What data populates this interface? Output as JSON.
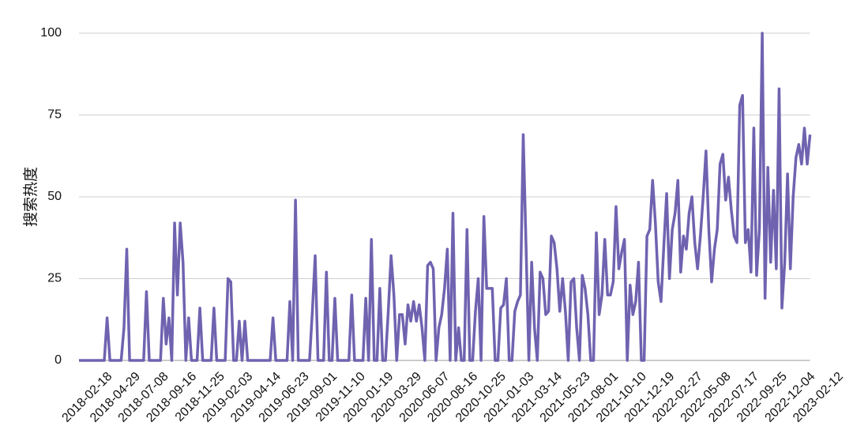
{
  "chart_data": {
    "type": "line",
    "y_label": "搜索热度",
    "categories": [
      null,
      null,
      null,
      null,
      null,
      null,
      null,
      null,
      null,
      null,
      "2018-02-18",
      null,
      null,
      null,
      null,
      null,
      null,
      null,
      null,
      null,
      "2018-04-29",
      null,
      null,
      null,
      null,
      null,
      null,
      null,
      null,
      null,
      "2018-07-08",
      null,
      null,
      null,
      null,
      null,
      null,
      null,
      null,
      null,
      "2018-09-16",
      null,
      null,
      null,
      null,
      null,
      null,
      null,
      null,
      null,
      "2018-11-25",
      null,
      null,
      null,
      null,
      null,
      null,
      null,
      null,
      null,
      "2019-02-03",
      null,
      null,
      null,
      null,
      null,
      null,
      null,
      null,
      null,
      "2019-04-14",
      null,
      null,
      null,
      null,
      null,
      null,
      null,
      null,
      null,
      "2019-06-23",
      null,
      null,
      null,
      null,
      null,
      null,
      null,
      null,
      null,
      "2019-09-01",
      null,
      null,
      null,
      null,
      null,
      null,
      null,
      null,
      null,
      "2019-11-10",
      null,
      null,
      null,
      null,
      null,
      null,
      null,
      null,
      null,
      "2020-01-19",
      null,
      null,
      null,
      null,
      null,
      null,
      null,
      null,
      null,
      "2020-03-29",
      null,
      null,
      null,
      null,
      null,
      null,
      null,
      null,
      null,
      "2020-06-07",
      null,
      null,
      null,
      null,
      null,
      null,
      null,
      null,
      null,
      "2020-08-16",
      null,
      null,
      null,
      null,
      null,
      null,
      null,
      null,
      null,
      "2020-10-25",
      null,
      null,
      null,
      null,
      null,
      null,
      null,
      null,
      null,
      "2021-01-03",
      null,
      null,
      null,
      null,
      null,
      null,
      null,
      null,
      null,
      "2021-03-14",
      null,
      null,
      null,
      null,
      null,
      null,
      null,
      null,
      null,
      "2021-05-23",
      null,
      null,
      null,
      null,
      null,
      null,
      null,
      null,
      null,
      "2021-08-01",
      null,
      null,
      null,
      null,
      null,
      null,
      null,
      null,
      null,
      "2021-10-10",
      null,
      null,
      null,
      null,
      null,
      null,
      null,
      null,
      null,
      "2021-12-19",
      null,
      null,
      null,
      null,
      null,
      null,
      null,
      null,
      null,
      "2022-02-27",
      null,
      null,
      null,
      null,
      null,
      null,
      null,
      null,
      null,
      "2022-05-08",
      null,
      null,
      null,
      null,
      null,
      null,
      null,
      null,
      null,
      "2022-07-17",
      null,
      null,
      null,
      null,
      null,
      null,
      null,
      null,
      null,
      "2022-09-25",
      null,
      null,
      null,
      null,
      null,
      null,
      null,
      null,
      null,
      "2022-12-04",
      null,
      null,
      null,
      null,
      null,
      null,
      null,
      null,
      null,
      "2023-02-12"
    ],
    "series": [
      {
        "color": "#6f63b0",
        "values": [
          0,
          0,
          0,
          0,
          0,
          0,
          0,
          0,
          0,
          0,
          13,
          0,
          0,
          0,
          0,
          0,
          10,
          34,
          0,
          0,
          0,
          0,
          0,
          0,
          21,
          0,
          0,
          0,
          0,
          0,
          19,
          5,
          13,
          0,
          42,
          20,
          42,
          30,
          0,
          13,
          0,
          0,
          0,
          16,
          0,
          0,
          0,
          0,
          16,
          0,
          0,
          0,
          0,
          25,
          24,
          0,
          0,
          12,
          0,
          12,
          0,
          0,
          0,
          0,
          0,
          0,
          0,
          0,
          0,
          13,
          0,
          0,
          0,
          0,
          0,
          18,
          0,
          49,
          0,
          0,
          0,
          0,
          0,
          15,
          32,
          0,
          0,
          0,
          27,
          0,
          0,
          19,
          0,
          0,
          0,
          0,
          0,
          20,
          0,
          0,
          0,
          0,
          19,
          0,
          37,
          0,
          0,
          22,
          0,
          0,
          15,
          32,
          20,
          0,
          14,
          14,
          5,
          17,
          12,
          18,
          12,
          17,
          10,
          0,
          29,
          30,
          28,
          0,
          10,
          14,
          22,
          34,
          0,
          45,
          0,
          10,
          0,
          0,
          40,
          0,
          0,
          15,
          25,
          0,
          44,
          22,
          22,
          22,
          0,
          0,
          16,
          17,
          25,
          0,
          0,
          15,
          18,
          20,
          69,
          35,
          0,
          30,
          10,
          0,
          27,
          25,
          14,
          15,
          38,
          36,
          28,
          15,
          25,
          15,
          0,
          24,
          25,
          10,
          0,
          26,
          22,
          14,
          0,
          0,
          39,
          14,
          20,
          37,
          20,
          20,
          24,
          47,
          28,
          33,
          37,
          0,
          23,
          14,
          18,
          30,
          0,
          0,
          38,
          40,
          55,
          42,
          24,
          18,
          35,
          51,
          25,
          40,
          45,
          55,
          27,
          38,
          34,
          45,
          50,
          36,
          28,
          38,
          50,
          64,
          40,
          24,
          34,
          40,
          60,
          63,
          49,
          56,
          46,
          38,
          36,
          78,
          81,
          36,
          40,
          27,
          71,
          26,
          40,
          100,
          19,
          59,
          30,
          52,
          28,
          83,
          16,
          30,
          57,
          28,
          50,
          62,
          66,
          60,
          71,
          60,
          69,
          null,
          null,
          null,
          null,
          null,
          null,
          null,
          null,
          null,
          null
        ]
      }
    ],
    "ylim": [
      0,
      100
    ],
    "yticks": [
      0,
      25,
      50,
      75,
      100
    ],
    "grid": true
  }
}
